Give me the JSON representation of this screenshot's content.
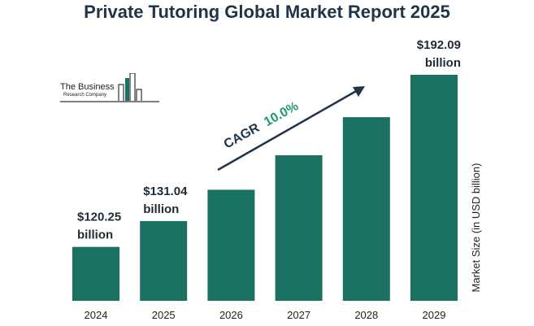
{
  "title": "Private Tutoring Global Market Report 2025",
  "logo": {
    "line1": "The Business",
    "line2": "Research Company"
  },
  "colors": {
    "bar": "#1a7061",
    "cagr_value": "#1f9a6e",
    "text": "#1f2a35"
  },
  "chart_data": {
    "type": "bar",
    "title": "Private Tutoring Global Market Report 2025",
    "categories": [
      "2024",
      "2025",
      "2026",
      "2027",
      "2028",
      "2029"
    ],
    "values": [
      120.25,
      131.04,
      144.1,
      158.5,
      174.4,
      192.09
    ],
    "data_labels": [
      {
        "index": 0,
        "value": "$120.25",
        "unit": "billion"
      },
      {
        "index": 1,
        "value": "$131.04",
        "unit": "billion"
      },
      {
        "index": 5,
        "value": "$192.09",
        "unit": "billion"
      }
    ],
    "xlabel": "",
    "ylabel": "Market Size (in USD billion)",
    "annotation": {
      "label": "CAGR",
      "value": "10.0%"
    },
    "grid": false,
    "legend": "none"
  }
}
